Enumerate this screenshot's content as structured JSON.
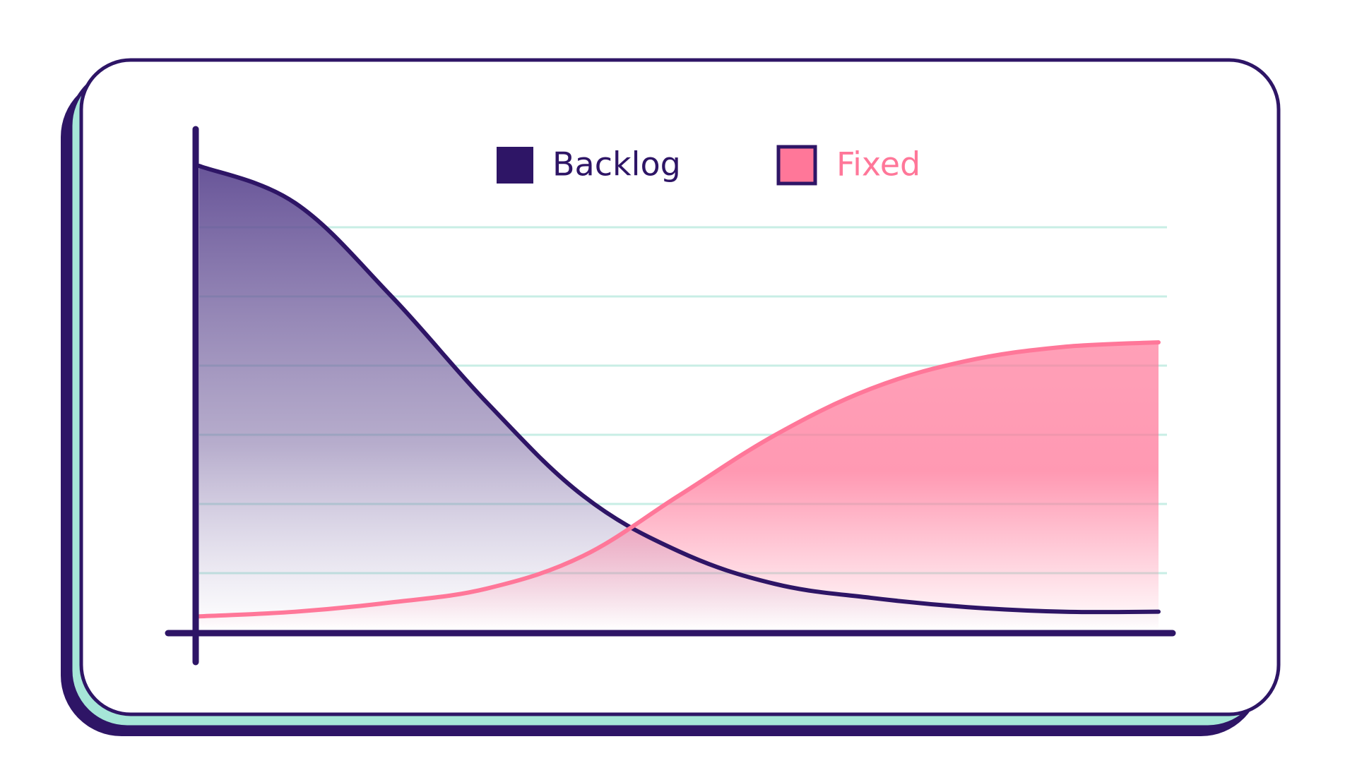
{
  "colors": {
    "outline": "#2e1566",
    "mint": "#a6e6d8",
    "backlog_fill": "#5b4690",
    "fixed": "#ff7799",
    "gridline": "#c8eee5"
  },
  "chart_data": {
    "type": "area",
    "title": "",
    "xlabel": "",
    "ylabel": "",
    "grid": true,
    "gridlines": 6,
    "legend_position": "top-center",
    "xlim": [
      0,
      10
    ],
    "ylim": [
      0,
      10
    ],
    "x": [
      0,
      1,
      2,
      3,
      4,
      5,
      6,
      7,
      8,
      9,
      10
    ],
    "series": [
      {
        "name": "Backlog",
        "color": "#2e1566",
        "values": [
          10,
          9.2,
          7.2,
          4.9,
          2.9,
          1.7,
          1.0,
          0.7,
          0.5,
          0.4,
          0.4
        ]
      },
      {
        "name": "Fixed",
        "color": "#ff7799",
        "values": [
          0.3,
          0.4,
          0.6,
          0.9,
          1.6,
          2.9,
          4.2,
          5.2,
          5.8,
          6.1,
          6.2
        ]
      }
    ]
  }
}
